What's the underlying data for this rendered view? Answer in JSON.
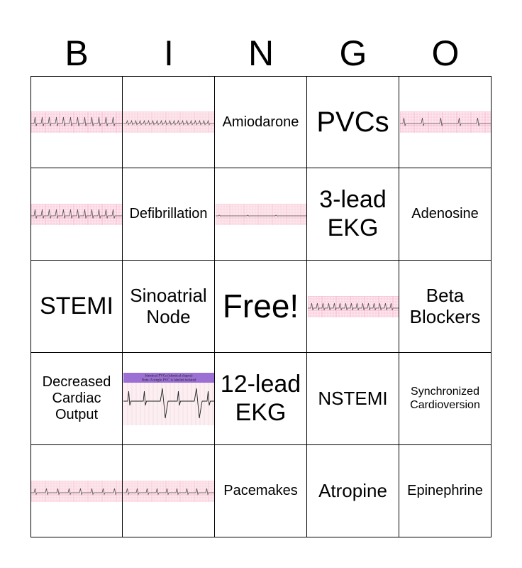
{
  "header": [
    "B",
    "I",
    "N",
    "G",
    "O"
  ],
  "cells": [
    {
      "kind": "strip",
      "name": "ecg-strip-1",
      "style": "a",
      "color": "#f7b3c8"
    },
    {
      "kind": "strip",
      "name": "ecg-strip-2",
      "style": "b",
      "color": "#f5c6cf"
    },
    {
      "kind": "text",
      "text": "Amiodarone",
      "size": "sz-m"
    },
    {
      "kind": "text",
      "text": "PVCs",
      "size": "sz-xxl"
    },
    {
      "kind": "strip",
      "name": "ecg-strip-3",
      "style": "c",
      "color": "#f7b3c8"
    },
    {
      "kind": "strip",
      "name": "ecg-strip-4",
      "style": "a",
      "color": "#f7b3c8"
    },
    {
      "kind": "text",
      "text": "Defibrillation",
      "size": "sz-m"
    },
    {
      "kind": "strip",
      "name": "ecg-strip-5",
      "style": "d",
      "color": "#f5c6cf"
    },
    {
      "kind": "text",
      "text": "3-lead EKG",
      "size": "sz-xl"
    },
    {
      "kind": "text",
      "text": "Adenosine",
      "size": "sz-m"
    },
    {
      "kind": "text",
      "text": "STEMI",
      "size": "sz-xl"
    },
    {
      "kind": "text",
      "text": "Sinoatrial Node",
      "size": "sz-l"
    },
    {
      "kind": "text",
      "text": "Free!",
      "size": "sz-free"
    },
    {
      "kind": "strip",
      "name": "ecg-strip-6",
      "style": "e",
      "color": "#f7b3c8"
    },
    {
      "kind": "text",
      "text": "Beta Blockers",
      "size": "sz-l"
    },
    {
      "kind": "text",
      "text": "Decreased Cardiac Output",
      "size": "sz-m"
    },
    {
      "kind": "pvc",
      "name": "pvc-image",
      "caption": "Identical PVCs (identical shapes)\nNote: A single PVC is labeled isolated"
    },
    {
      "kind": "text",
      "text": "12-lead EKG",
      "size": "sz-xl"
    },
    {
      "kind": "text",
      "text": "NSTEMI",
      "size": "sz-l"
    },
    {
      "kind": "text",
      "text": "Synchronized Cardioversion",
      "size": "sz-s"
    },
    {
      "kind": "strip",
      "name": "ecg-strip-7",
      "style": "f",
      "color": "#f5c6cf"
    },
    {
      "kind": "strip",
      "name": "ecg-strip-8",
      "style": "g",
      "color": "#f5c6cf"
    },
    {
      "kind": "text",
      "text": "Pacemakes",
      "size": "sz-m"
    },
    {
      "kind": "text",
      "text": "Atropine",
      "size": "sz-l"
    },
    {
      "kind": "text",
      "text": "Epinephrine",
      "size": "sz-m"
    }
  ]
}
